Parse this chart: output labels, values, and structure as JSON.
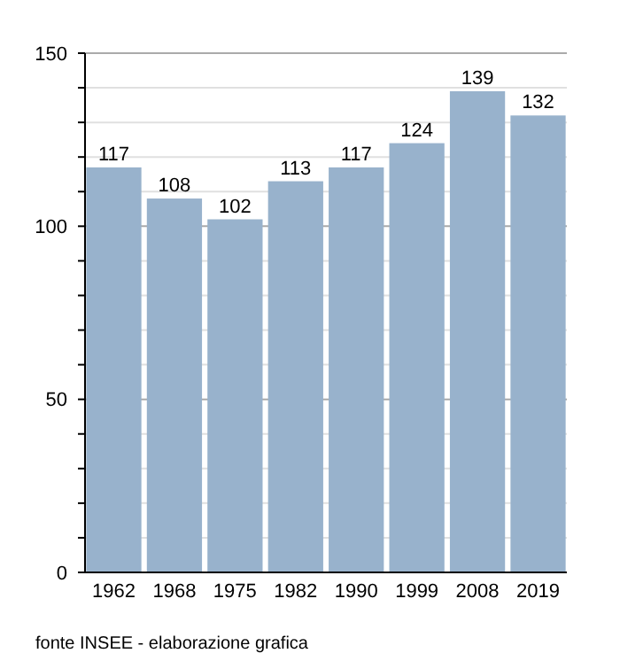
{
  "chart_data": {
    "type": "bar",
    "categories": [
      "1962",
      "1968",
      "1975",
      "1982",
      "1990",
      "1999",
      "2008",
      "2019"
    ],
    "values": [
      117,
      108,
      102,
      113,
      117,
      124,
      139,
      132
    ],
    "color": "#98b2cc",
    "data_labels": true,
    "grid": "y",
    "ylim": [
      0,
      150
    ],
    "yticks": [
      0,
      {
        "value": 10,
        "label": null
      },
      {
        "value": 20,
        "label": null
      },
      {
        "value": 30,
        "label": null
      },
      {
        "value": 40,
        "label": null
      },
      50,
      {
        "value": 60,
        "label": null
      },
      {
        "value": 70,
        "label": null
      },
      {
        "value": 80,
        "label": null
      },
      {
        "value": 90,
        "label": null
      },
      100,
      {
        "value": 110,
        "label": null
      },
      {
        "value": 120,
        "label": null
      },
      {
        "value": 130,
        "label": null
      },
      {
        "value": 140,
        "label": null
      },
      150
    ],
    "annotations": [
      "fonte INSEE - elaborazione grafica"
    ]
  }
}
